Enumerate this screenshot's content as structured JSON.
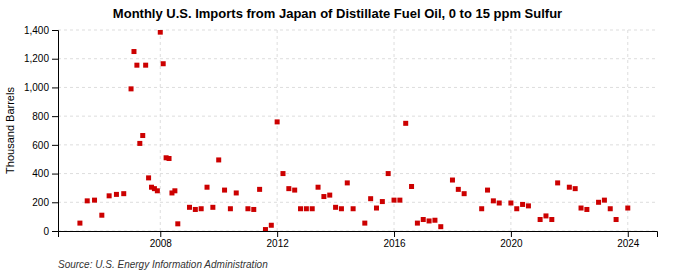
{
  "chart_data": {
    "type": "scatter",
    "title": "Monthly U.S. Imports from Japan of Distillate Fuel Oil, 0 to 15 ppm Sulfur",
    "ylabel": "Thousand Barrels",
    "source": "Source: U.S. Energy Information Administration",
    "color": "#cc0000",
    "marker": "square",
    "grid": true,
    "xlim": [
      2004.5,
      2025.0
    ],
    "xticks": [
      2008,
      2012,
      2016,
      2020,
      2024
    ],
    "ylim": [
      0,
      1400
    ],
    "yticks": [
      0,
      200,
      400,
      600,
      800,
      {
        "value": 1000,
        "label": "1,000"
      },
      {
        "value": 1200,
        "label": "1,200"
      },
      {
        "value": 1400,
        "label": "1,400"
      }
    ],
    "x": [
      2005.25,
      2005.5,
      2005.75,
      2006.0,
      2006.25,
      2006.5,
      2006.75,
      2007.0,
      2007.1,
      2007.2,
      2007.3,
      2007.4,
      2007.5,
      2007.6,
      2007.7,
      2007.8,
      2007.9,
      2008.0,
      2008.1,
      2008.2,
      2008.3,
      2008.4,
      2008.5,
      2008.6,
      2009.0,
      2009.2,
      2009.4,
      2009.6,
      2009.8,
      2010.0,
      2010.2,
      2010.4,
      2010.6,
      2011.0,
      2011.2,
      2011.4,
      2011.6,
      2011.8,
      2012.0,
      2012.2,
      2012.4,
      2012.6,
      2012.8,
      2013.0,
      2013.2,
      2013.4,
      2013.6,
      2013.8,
      2014.0,
      2014.2,
      2014.4,
      2014.6,
      2015.0,
      2015.2,
      2015.4,
      2015.6,
      2015.8,
      2016.0,
      2016.2,
      2016.4,
      2016.6,
      2016.8,
      2017.0,
      2017.2,
      2017.4,
      2017.6,
      2018.0,
      2018.2,
      2018.4,
      2019.0,
      2019.2,
      2019.4,
      2019.6,
      2020.0,
      2020.2,
      2020.4,
      2020.6,
      2021.0,
      2021.2,
      2021.4,
      2021.6,
      2022.0,
      2022.2,
      2022.4,
      2022.6,
      2023.0,
      2023.2,
      2023.4,
      2023.6,
      2024.0
    ],
    "values": [
      55,
      210,
      215,
      110,
      245,
      255,
      260,
      990,
      1250,
      1155,
      610,
      665,
      1155,
      370,
      305,
      295,
      280,
      1385,
      1165,
      510,
      505,
      265,
      280,
      50,
      165,
      150,
      155,
      305,
      165,
      495,
      285,
      155,
      265,
      155,
      150,
      290,
      10,
      40,
      760,
      400,
      295,
      285,
      155,
      155,
      155,
      305,
      240,
      250,
      165,
      155,
      335,
      155,
      55,
      225,
      160,
      205,
      400,
      215,
      215,
      750,
      310,
      55,
      80,
      70,
      75,
      30,
      355,
      290,
      260,
      155,
      285,
      210,
      195,
      195,
      155,
      185,
      175,
      80,
      105,
      80,
      335,
      305,
      295,
      160,
      150,
      200,
      215,
      155,
      80,
      160
    ]
  }
}
